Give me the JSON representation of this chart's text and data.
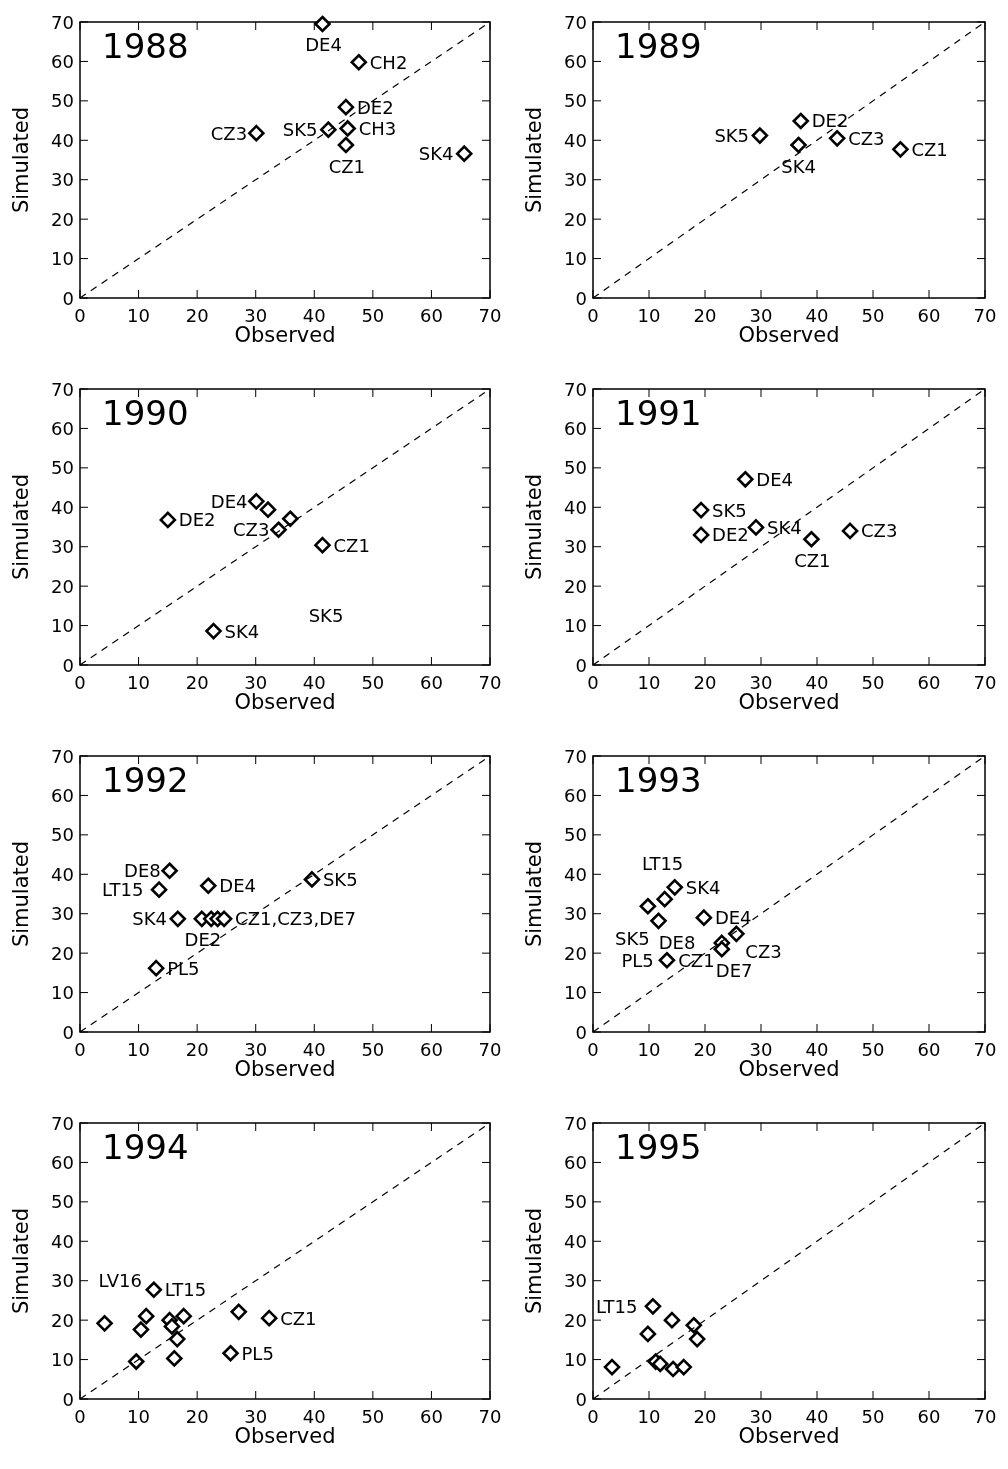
{
  "chart_data": [
    {
      "type": "scatter",
      "title": "1988",
      "xlabel": "Observed",
      "ylabel": "Simulated",
      "xlim": [
        0,
        70
      ],
      "ylim": [
        0,
        70
      ],
      "xticks": [
        0,
        10,
        20,
        30,
        40,
        50,
        60,
        70
      ],
      "yticks": [
        0,
        10,
        20,
        30,
        40,
        50,
        60,
        70
      ],
      "marker": "diamond",
      "series": [
        {
          "color": "#000000",
          "x": [
            41.4,
            47.6,
            45.4,
            45.7,
            42.4,
            45.4,
            30.1,
            65.6
          ],
          "values": [
            69.5,
            59.8,
            48.4,
            43.0,
            42.7,
            38.8,
            41.8,
            36.6
          ]
        },
        {
          "type": "line",
          "color": "#000000",
          "line_style": "dashed",
          "marker": "none",
          "x": [
            0,
            70
          ],
          "values": [
            0,
            70
          ]
        }
      ],
      "annotations": [
        {
          "text": "DE4",
          "x": 41.4,
          "y": 69.5
        },
        {
          "text": "CH2",
          "x": 47.6,
          "y": 59.8
        },
        {
          "text": "DE2",
          "x": 45.4,
          "y": 48.4
        },
        {
          "text": "CH3",
          "x": 45.7,
          "y": 43.0
        },
        {
          "text": "SK5",
          "x": 42.4,
          "y": 42.7
        },
        {
          "text": "CZ1",
          "x": 45.4,
          "y": 38.8
        },
        {
          "text": "CZ3",
          "x": 30.1,
          "y": 41.8
        },
        {
          "text": "SK4",
          "x": 65.6,
          "y": 36.6
        }
      ]
    },
    {
      "type": "scatter",
      "title": "1989",
      "xlabel": "Observed",
      "ylabel": "Simulated",
      "xlim": [
        0,
        70
      ],
      "ylim": [
        0,
        70
      ],
      "xticks": [
        0,
        10,
        20,
        30,
        40,
        50,
        60,
        70
      ],
      "yticks": [
        0,
        10,
        20,
        30,
        40,
        50,
        60,
        70
      ],
      "marker": "diamond",
      "series": [
        {
          "color": "#000000",
          "x": [
            29.8,
            37.1,
            36.7,
            43.6,
            54.9
          ],
          "values": [
            41.2,
            44.9,
            38.8,
            40.5,
            37.7
          ]
        },
        {
          "type": "line",
          "color": "#000000",
          "line_style": "dashed",
          "marker": "none",
          "x": [
            0,
            70
          ],
          "values": [
            0,
            70
          ]
        }
      ],
      "annotations": [
        {
          "text": "DE2",
          "x": 37.1,
          "y": 44.9
        },
        {
          "text": "SK5",
          "x": 29.8,
          "y": 41.2
        },
        {
          "text": "SK4",
          "x": 36.7,
          "y": 38.8
        },
        {
          "text": "CZ3",
          "x": 43.6,
          "y": 40.5
        },
        {
          "text": "CZ1",
          "x": 54.9,
          "y": 37.7
        }
      ]
    },
    {
      "type": "scatter",
      "title": "1990",
      "xlabel": "Observed",
      "ylabel": "Simulated",
      "xlim": [
        0,
        70
      ],
      "ylim": [
        0,
        70
      ],
      "xticks": [
        0,
        10,
        20,
        30,
        40,
        50,
        60,
        70
      ],
      "yticks": [
        0,
        10,
        20,
        30,
        40,
        50,
        60,
        70
      ],
      "marker": "diamond",
      "series": [
        {
          "color": "#000000",
          "x": [
            15,
            30.1,
            32.1,
            35.9,
            33.9,
            41.4,
            22.8
          ],
          "values": [
            36.8,
            41.5,
            39.4,
            37.1,
            34.3,
            30.4,
            8.6
          ]
        },
        {
          "type": "line",
          "color": "#000000",
          "line_style": "dashed",
          "marker": "none",
          "x": [
            0,
            70
          ],
          "values": [
            0,
            70
          ]
        }
      ],
      "annotations": [
        {
          "text": "DE4",
          "x": 30.1,
          "y": 41.5
        },
        {
          "text": "DE2",
          "x": 15,
          "y": 36.8
        },
        {
          "text": "CZ3",
          "x": 33.9,
          "y": 34.3
        },
        {
          "text": "CZ1",
          "x": 41.4,
          "y": 30.4
        },
        "SK5",
        {
          "text": "SK4",
          "x": 22.8,
          "y": 8.6
        }
      ]
    },
    {
      "type": "scatter",
      "title": "1991",
      "xlabel": "Observed",
      "ylabel": "Simulated",
      "xlim": [
        0,
        70
      ],
      "ylim": [
        0,
        70
      ],
      "xticks": [
        0,
        10,
        20,
        30,
        40,
        50,
        60,
        70
      ],
      "yticks": [
        0,
        10,
        20,
        30,
        40,
        50,
        60,
        70
      ],
      "marker": "diamond",
      "series": [
        {
          "color": "#000000",
          "x": [
            19.3,
            19.3,
            27.2,
            29.1,
            39.0,
            45.9
          ],
          "values": [
            39.3,
            33,
            47.1,
            34.9,
            31.9,
            34
          ]
        },
        {
          "type": "line",
          "color": "#000000",
          "line_style": "dashed",
          "marker": "none",
          "x": [
            0,
            70
          ],
          "values": [
            0,
            70
          ]
        }
      ],
      "annotations": [
        {
          "text": "DE4",
          "x": 27.2,
          "y": 47.1
        },
        {
          "text": "SK5",
          "x": 19.3,
          "y": 39.3
        },
        {
          "text": "DE2",
          "x": 19.3,
          "y": 33
        },
        {
          "text": "SK4",
          "x": 29.1,
          "y": 34.9
        },
        {
          "text": "CZ1",
          "x": 39.0,
          "y": 31.9
        },
        {
          "text": "CZ3",
          "x": 45.9,
          "y": 34
        }
      ]
    },
    {
      "type": "scatter",
      "title": "1992",
      "xlabel": "Observed",
      "ylabel": "Simulated",
      "xlim": [
        0,
        70
      ],
      "ylim": [
        0,
        70
      ],
      "xticks": [
        0,
        10,
        20,
        30,
        40,
        50,
        60,
        70
      ],
      "yticks": [
        0,
        10,
        20,
        30,
        40,
        50,
        60,
        70
      ],
      "marker": "diamond",
      "series": [
        {
          "color": "#000000",
          "x": [
            15.3,
            13.5,
            21.9,
            39.6,
            16.7,
            20.8,
            22.4,
            23.5,
            24.6,
            13
          ],
          "values": [
            40.9,
            36.1,
            37.1,
            38.7,
            28.7,
            28.7,
            28.7,
            28.7,
            28.7,
            16.2
          ]
        },
        {
          "type": "line",
          "color": "#000000",
          "line_style": "dashed",
          "marker": "none",
          "x": [
            0,
            70
          ],
          "values": [
            0,
            70
          ]
        }
      ],
      "annotations": [
        {
          "text": "DE8",
          "x": 15.3,
          "y": 40.9
        },
        {
          "text": "LT15",
          "x": 13.5,
          "y": 36.1
        },
        {
          "text": "DE4",
          "x": 21.9,
          "y": 37.1
        },
        {
          "text": "SK5",
          "x": 39.6,
          "y": 38.7
        },
        {
          "text": "SK4",
          "x": 16.7,
          "y": 28.7
        },
        {
          "text": "DE2",
          "x": 20.8,
          "y": 28.7
        },
        {
          "text": "CZ1,CZ3,DE7",
          "x": 24.6,
          "y": 28.7
        },
        {
          "text": "PL5",
          "x": 13,
          "y": 16.2
        }
      ]
    },
    {
      "type": "scatter",
      "title": "1993",
      "xlabel": "Observed",
      "ylabel": "Simulated",
      "xlim": [
        0,
        70
      ],
      "ylim": [
        0,
        70
      ],
      "xticks": [
        0,
        10,
        20,
        30,
        40,
        50,
        60,
        70
      ],
      "yticks": [
        0,
        10,
        20,
        30,
        40,
        50,
        60,
        70
      ],
      "marker": "diamond",
      "series": [
        {
          "color": "#000000",
          "x": [
            9.8,
            12.8,
            14.6,
            11.7,
            19.8,
            25.6,
            23,
            23,
            13.2
          ],
          "values": [
            31.9,
            33.7,
            36.7,
            28.2,
            29,
            24.9,
            22.6,
            21,
            18.2
          ]
        },
        {
          "type": "line",
          "color": "#000000",
          "line_style": "dashed",
          "marker": "none",
          "x": [
            0,
            70
          ],
          "values": [
            0,
            70
          ]
        }
      ],
      "annotations": [
        {
          "text": "SK4",
          "x": 14.6,
          "y": 36.7
        },
        {
          "text": "LT15",
          "x": 9.8,
          "y": 31.9
        },
        {
          "text": "DE8",
          "x": 12.8,
          "y": 33.7
        },
        {
          "text": "SK5",
          "x": 11.7,
          "y": 28.2
        },
        {
          "text": "DE4",
          "x": 19.8,
          "y": 29
        },
        {
          "text": "CZ3",
          "x": 25.6,
          "y": 24.9
        },
        {
          "text": "CZ1",
          "x": 23,
          "y": 22.6
        },
        {
          "text": "PL5",
          "x": 13.2,
          "y": 18.2
        },
        {
          "text": "DE7",
          "x": 23,
          "y": 21
        }
      ]
    },
    {
      "type": "scatter",
      "title": "1994",
      "xlabel": "Observed",
      "ylabel": "Simulated",
      "xlim": [
        0,
        70
      ],
      "ylim": [
        0,
        70
      ],
      "xticks": [
        0,
        10,
        20,
        30,
        40,
        50,
        60,
        70
      ],
      "yticks": [
        0,
        10,
        20,
        30,
        40,
        50,
        60,
        70
      ],
      "marker": "diamond",
      "series": [
        {
          "color": "#000000",
          "x": [
            4.2,
            12.6,
            11.3,
            10.4,
            9.6,
            15.3,
            15.7,
            17.7,
            16.6,
            16.1,
            27.1,
            32.3,
            25.7
          ],
          "values": [
            19.2,
            27.7,
            21,
            17.6,
            9.5,
            20,
            18.4,
            21,
            15.2,
            10.3,
            22.1,
            20.5,
            11.6
          ]
        },
        {
          "type": "line",
          "color": "#000000",
          "line_style": "dashed",
          "marker": "none",
          "x": [
            0,
            70
          ],
          "values": [
            0,
            70
          ]
        }
      ],
      "annotations": [
        {
          "text": "LV16",
          "x": 4.2,
          "y": 19.2
        },
        {
          "text": "LT15",
          "x": 12.6,
          "y": 27.7
        },
        {
          "text": "CZ1",
          "x": 32.3,
          "y": 20.5
        },
        {
          "text": "PL5",
          "x": 25.7,
          "y": 11.6
        }
      ]
    },
    {
      "type": "scatter",
      "title": "1995",
      "xlabel": "Observed",
      "ylabel": "Simulated",
      "xlim": [
        0,
        70
      ],
      "ylim": [
        0,
        70
      ],
      "xticks": [
        0,
        10,
        20,
        30,
        40,
        50,
        60,
        70
      ],
      "yticks": [
        0,
        10,
        20,
        30,
        40,
        50,
        60,
        70
      ],
      "marker": "diamond",
      "series": [
        {
          "color": "#000000",
          "x": [
            10.7,
            9.8,
            14.1,
            18,
            18.6,
            11.2,
            12,
            14.3,
            16.2,
            3.4
          ],
          "values": [
            23.5,
            16.5,
            20,
            18.7,
            15.2,
            9.5,
            8.9,
            7.6,
            8.1,
            8.1
          ]
        },
        {
          "type": "line",
          "color": "#000000",
          "line_style": "dashed",
          "marker": "none",
          "x": [
            0,
            70
          ],
          "values": [
            0,
            70
          ]
        }
      ],
      "annotations": [
        {
          "text": "LT15",
          "x": 10.7,
          "y": 23.5
        }
      ]
    }
  ]
}
